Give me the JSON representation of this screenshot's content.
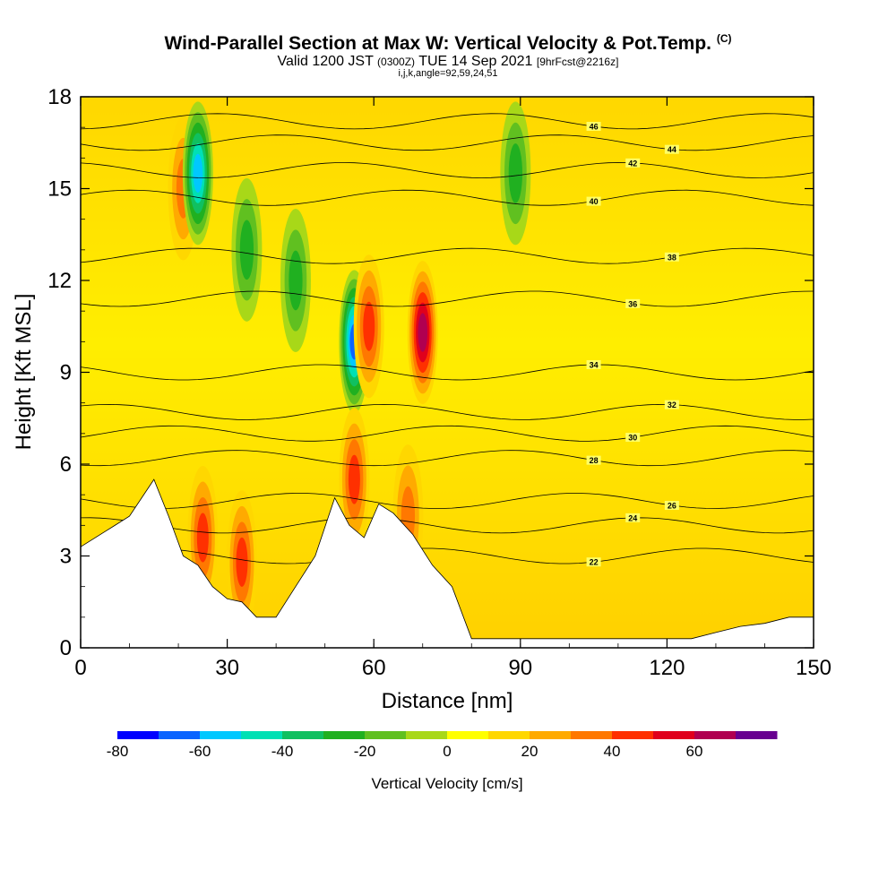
{
  "title": {
    "main": "Wind-Parallel Section at Max W: Vertical Velocity & Pot.Temp.",
    "copyright": "(C)",
    "valid_prefix": "Valid 1200 JST",
    "valid_utc": "(0300Z)",
    "valid_date": "TUE 14 Sep 2021",
    "forecast": "[9hrFcst@2216z]",
    "indices": "i,j,k,angle=92,59,24,51"
  },
  "chart_data": {
    "type": "heatmap",
    "xlabel": "Distance [nm]",
    "ylabel": "Height [Kft MSL]",
    "xlim": [
      0,
      150
    ],
    "ylim": [
      0,
      18
    ],
    "x_ticks": [
      "0",
      "30",
      "60",
      "90",
      "120",
      "150"
    ],
    "y_ticks": [
      "0",
      "3",
      "6",
      "9",
      "12",
      "15",
      "18"
    ],
    "colorbar": {
      "title": "Vertical Velocity [cm/s]",
      "tick_labels": [
        "-80",
        "-60",
        "-40",
        "-20",
        "0",
        "20",
        "40",
        "60"
      ],
      "levels": [
        -80,
        -70,
        -60,
        -50,
        -40,
        -30,
        -20,
        -10,
        0,
        10,
        20,
        30,
        40,
        50,
        60,
        70
      ],
      "colors": [
        "#0000ff",
        "#0a64ff",
        "#00c8ff",
        "#00e0b4",
        "#10c060",
        "#20b020",
        "#60c020",
        "#a8d818",
        "#ffff00",
        "#ffd700",
        "#ffaa00",
        "#ff7800",
        "#ff3000",
        "#e0001c",
        "#b00050",
        "#680090"
      ]
    },
    "terrain_height_kft": [
      [
        0,
        3.3
      ],
      [
        5,
        3.8
      ],
      [
        10,
        4.3
      ],
      [
        15,
        5.5
      ],
      [
        18,
        4.3
      ],
      [
        21,
        3.0
      ],
      [
        24,
        2.7
      ],
      [
        27,
        2.0
      ],
      [
        30,
        1.6
      ],
      [
        33,
        1.5
      ],
      [
        36,
        1.0
      ],
      [
        40,
        1.0
      ],
      [
        44,
        2.0
      ],
      [
        48,
        3.0
      ],
      [
        52,
        4.9
      ],
      [
        55,
        4.0
      ],
      [
        58,
        3.6
      ],
      [
        61,
        4.7
      ],
      [
        64,
        4.4
      ],
      [
        68,
        3.7
      ],
      [
        72,
        2.7
      ],
      [
        76,
        2.0
      ],
      [
        80,
        0.3
      ],
      [
        90,
        0.3
      ],
      [
        110,
        0.3
      ],
      [
        125,
        0.3
      ],
      [
        130,
        0.5
      ],
      [
        135,
        0.7
      ],
      [
        140,
        0.8
      ],
      [
        145,
        1.0
      ],
      [
        150,
        1.0
      ]
    ],
    "theta_contours": [
      {
        "label": "22",
        "kft": 3.0
      },
      {
        "label": "24",
        "kft": 4.0
      },
      {
        "label": "26",
        "kft": 4.8
      },
      {
        "label": "28",
        "kft": 6.2
      },
      {
        "label": "30",
        "kft": 7.0
      },
      {
        "label": "32",
        "kft": 7.7
      },
      {
        "label": "34",
        "kft": 9.0
      },
      {
        "label": "36",
        "kft": 11.4
      },
      {
        "label": "38",
        "kft": 12.8
      },
      {
        "label": "40",
        "kft": 14.7
      },
      {
        "label": "42",
        "kft": 15.6
      },
      {
        "label": "44",
        "kft": 16.5
      },
      {
        "label": "46",
        "kft": 17.2
      }
    ],
    "velocity_features": [
      {
        "x": 25,
        "kft": 3.6,
        "w": 35
      },
      {
        "x": 33,
        "kft": 2.8,
        "w": 40
      },
      {
        "x": 21,
        "kft": 15.0,
        "w": 25
      },
      {
        "x": 24,
        "kft": 15.5,
        "w": -60
      },
      {
        "x": 56,
        "kft": 10.0,
        "w": -65
      },
      {
        "x": 59,
        "kft": 10.5,
        "w": 40
      },
      {
        "x": 70,
        "kft": 10.3,
        "w": 60
      },
      {
        "x": 56,
        "kft": 5.5,
        "w": 35
      },
      {
        "x": 67,
        "kft": 4.3,
        "w": 30
      },
      {
        "x": 34,
        "kft": 13.0,
        "w": -30
      },
      {
        "x": 44,
        "kft": 12.0,
        "w": -25
      },
      {
        "x": 89,
        "kft": 15.5,
        "w": -30
      }
    ]
  }
}
